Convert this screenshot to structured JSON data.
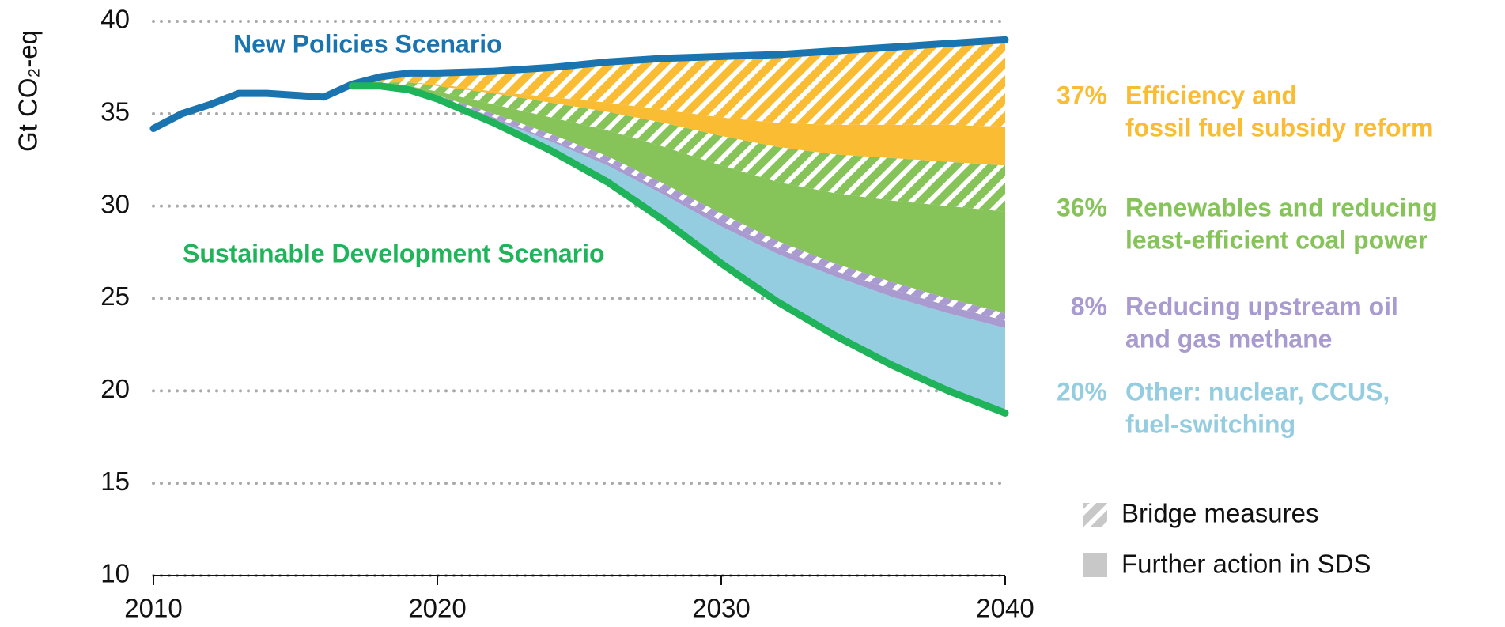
{
  "chart_data": {
    "type": "stacked-area",
    "ylabel": "Gt CO₂-eq",
    "x": [
      2010,
      2011,
      2012,
      2013,
      2014,
      2015,
      2016,
      2017,
      2018,
      2019,
      2020,
      2022,
      2024,
      2026,
      2028,
      2030,
      2032,
      2034,
      2036,
      2038,
      2040
    ],
    "xlim": [
      2010,
      2040
    ],
    "xticks": [
      2010,
      2020,
      2030,
      2040
    ],
    "ylim": [
      10,
      40
    ],
    "yticks": [
      10,
      15,
      20,
      25,
      30,
      35,
      40
    ],
    "grid": true,
    "lines": [
      {
        "name": "New Policies Scenario",
        "color": "#1a74b0",
        "values": [
          34.2,
          35,
          35.5,
          36.1,
          36.1,
          36,
          35.9,
          36.6,
          37,
          37.2,
          37.2,
          37.3,
          37.5,
          37.8,
          38,
          38.1,
          38.2,
          38.4,
          38.6,
          38.8,
          39
        ]
      },
      {
        "name": "Sustainable Development Scenario",
        "color": "#1fb35a",
        "values": [
          null,
          null,
          null,
          null,
          null,
          null,
          null,
          36.5,
          36.5,
          36.3,
          35.8,
          34.5,
          33.0,
          31.3,
          29.2,
          26.9,
          24.8,
          23.0,
          21.4,
          20.0,
          18.8
        ]
      }
    ],
    "wedges": [
      {
        "label": [
          "Efficiency and",
          "fossil fuel subsidy reform"
        ],
        "share": 37,
        "share_label": "37%",
        "color": "#f9bc33",
        "further": [
          null,
          null,
          null,
          null,
          null,
          null,
          null,
          0,
          0,
          0,
          0.1,
          0.1,
          0.3,
          0.5,
          0.7,
          1.0,
          1.3,
          1.6,
          1.8,
          2.0,
          2.1
        ],
        "bridge": [
          null,
          null,
          null,
          null,
          null,
          null,
          null,
          0.1,
          0.3,
          0.5,
          0.6,
          1.1,
          1.6,
          2.2,
          2.8,
          3.3,
          3.7,
          4.0,
          4.2,
          4.4,
          4.7
        ]
      },
      {
        "label": [
          "Renewables and reducing",
          "least-efficient coal power"
        ],
        "share": 36,
        "share_label": "36%",
        "color": "#86c45a",
        "further": [
          null,
          null,
          null,
          null,
          null,
          null,
          null,
          0,
          0,
          0.1,
          0.2,
          0.5,
          0.9,
          1.4,
          2.0,
          2.6,
          3.2,
          3.8,
          4.4,
          5.0,
          5.5
        ],
        "bridge": [
          null,
          null,
          null,
          null,
          null,
          null,
          null,
          0,
          0.1,
          0.2,
          0.3,
          0.6,
          0.8,
          1.0,
          1.3,
          1.6,
          1.9,
          2.1,
          2.3,
          2.4,
          2.5
        ]
      },
      {
        "label": [
          "Reducing upstream oil",
          "and gas methane"
        ],
        "share": 8,
        "share_label": "8%",
        "color": "#a99bd0",
        "further": [
          null,
          null,
          null,
          null,
          null,
          null,
          null,
          0,
          0,
          0,
          0,
          0.1,
          0.1,
          0.2,
          0.2,
          0.3,
          0.3,
          0.3,
          0.4,
          0.4,
          0.4
        ],
        "bridge": [
          null,
          null,
          null,
          null,
          null,
          null,
          null,
          0,
          0.1,
          0.1,
          0.1,
          0.2,
          0.3,
          0.3,
          0.4,
          0.4,
          0.4,
          0.4,
          0.4,
          0.4,
          0.4
        ]
      },
      {
        "label": [
          "Other: nuclear, CCUS,",
          "fuel-switching"
        ],
        "share": 20,
        "share_label": "20%",
        "color": "#94cde0",
        "further": [
          null,
          null,
          null,
          null,
          null,
          null,
          null,
          0,
          0,
          0,
          0.1,
          0.2,
          0.5,
          0.9,
          1.4,
          2.0,
          2.6,
          3.2,
          3.7,
          4.2,
          4.6
        ]
      }
    ],
    "legend": {
      "bridge": "Bridge measures",
      "further": "Further action in SDS",
      "color": "#c8c8c8"
    }
  }
}
